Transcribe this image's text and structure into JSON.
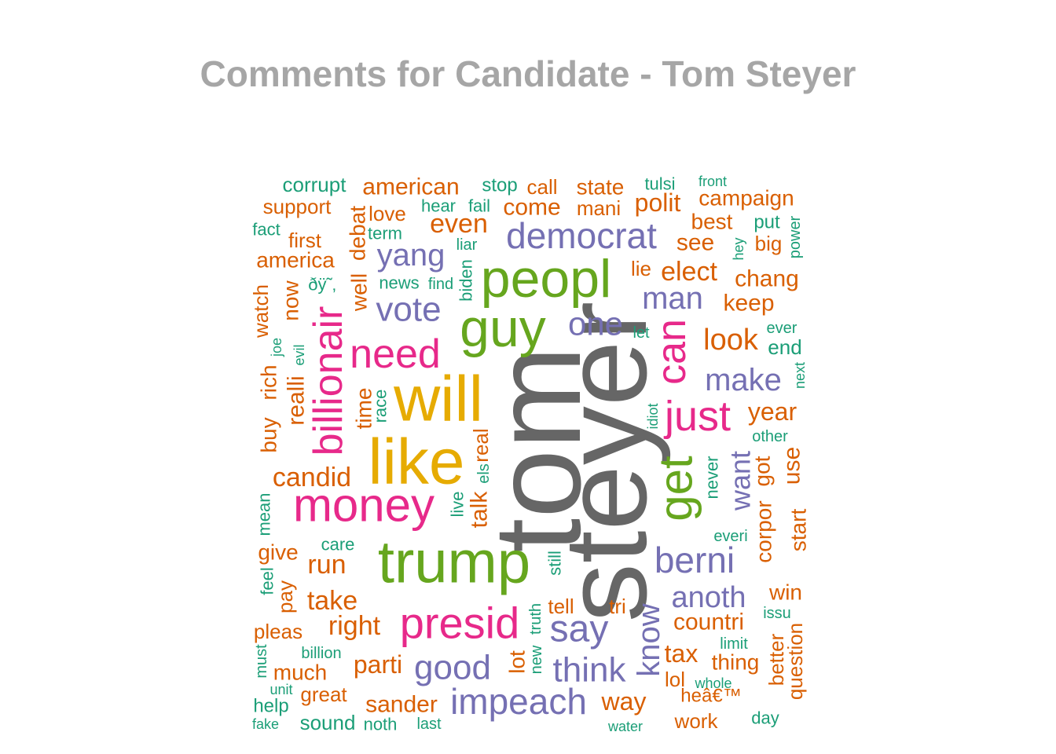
{
  "chart_data": {
    "type": "wordcloud",
    "title": "Comments for Candidate - Tom Steyer",
    "palette": [
      "#1b9e77",
      "#d95f02",
      "#7570b3",
      "#e7298a",
      "#66a61e",
      "#e6ab02",
      "#666666"
    ],
    "words": [
      {
        "text": "tom",
        "color": "#666666",
        "rotate": true
      },
      {
        "text": "steyer",
        "color": "#666666",
        "rotate": true
      },
      {
        "text": "trump",
        "color": "#66a61e",
        "rotate": false
      },
      {
        "text": "peopl",
        "color": "#66a61e",
        "rotate": false
      },
      {
        "text": "guy",
        "color": "#66a61e",
        "rotate": false
      },
      {
        "text": "will",
        "color": "#e6ab02",
        "rotate": false
      },
      {
        "text": "like",
        "color": "#e6ab02",
        "rotate": false
      },
      {
        "text": "get",
        "color": "#66a61e",
        "rotate": true
      },
      {
        "text": "money",
        "color": "#e7298a",
        "rotate": false
      },
      {
        "text": "presid",
        "color": "#e7298a",
        "rotate": false
      },
      {
        "text": "need",
        "color": "#e7298a",
        "rotate": false
      },
      {
        "text": "billionair",
        "color": "#e7298a",
        "rotate": true
      },
      {
        "text": "just",
        "color": "#e7298a",
        "rotate": false
      },
      {
        "text": "can",
        "color": "#e7298a",
        "rotate": true
      },
      {
        "text": "democrat",
        "color": "#7570b3",
        "rotate": false
      },
      {
        "text": "impeach",
        "color": "#7570b3",
        "rotate": false
      },
      {
        "text": "say",
        "color": "#7570b3",
        "rotate": false
      },
      {
        "text": "good",
        "color": "#7570b3",
        "rotate": false
      },
      {
        "text": "think",
        "color": "#7570b3",
        "rotate": false
      },
      {
        "text": "berni",
        "color": "#7570b3",
        "rotate": false
      },
      {
        "text": "vote",
        "color": "#7570b3",
        "rotate": false
      },
      {
        "text": "yang",
        "color": "#7570b3",
        "rotate": false
      },
      {
        "text": "one",
        "color": "#7570b3",
        "rotate": false
      },
      {
        "text": "man",
        "color": "#7570b3",
        "rotate": false
      },
      {
        "text": "make",
        "color": "#7570b3",
        "rotate": false
      },
      {
        "text": "know",
        "color": "#7570b3",
        "rotate": true
      },
      {
        "text": "want",
        "color": "#7570b3",
        "rotate": true
      },
      {
        "text": "anoth",
        "color": "#7570b3",
        "rotate": false
      },
      {
        "text": "corrupt",
        "color": "#1b9e77",
        "rotate": false
      },
      {
        "text": "american",
        "color": "#d95f02",
        "rotate": false
      },
      {
        "text": "stop",
        "color": "#1b9e77",
        "rotate": false
      },
      {
        "text": "call",
        "color": "#d95f02",
        "rotate": false
      },
      {
        "text": "state",
        "color": "#d95f02",
        "rotate": false
      },
      {
        "text": "tulsi",
        "color": "#1b9e77",
        "rotate": false
      },
      {
        "text": "front",
        "color": "#1b9e77",
        "rotate": false
      },
      {
        "text": "campaign",
        "color": "#d95f02",
        "rotate": false
      },
      {
        "text": "support",
        "color": "#d95f02",
        "rotate": false
      },
      {
        "text": "love",
        "color": "#d95f02",
        "rotate": false
      },
      {
        "text": "hear",
        "color": "#1b9e77",
        "rotate": false
      },
      {
        "text": "fail",
        "color": "#1b9e77",
        "rotate": false
      },
      {
        "text": "come",
        "color": "#d95f02",
        "rotate": false
      },
      {
        "text": "mani",
        "color": "#d95f02",
        "rotate": false
      },
      {
        "text": "polit",
        "color": "#d95f02",
        "rotate": false
      },
      {
        "text": "best",
        "color": "#d95f02",
        "rotate": false
      },
      {
        "text": "put",
        "color": "#1b9e77",
        "rotate": false
      },
      {
        "text": "power",
        "color": "#1b9e77",
        "rotate": true
      },
      {
        "text": "fact",
        "color": "#1b9e77",
        "rotate": false
      },
      {
        "text": "term",
        "color": "#1b9e77",
        "rotate": false
      },
      {
        "text": "even",
        "color": "#d95f02",
        "rotate": false
      },
      {
        "text": "first",
        "color": "#d95f02",
        "rotate": false
      },
      {
        "text": "debat",
        "color": "#d95f02",
        "rotate": true
      },
      {
        "text": "liar",
        "color": "#1b9e77",
        "rotate": false
      },
      {
        "text": "see",
        "color": "#d95f02",
        "rotate": false
      },
      {
        "text": "hey",
        "color": "#1b9e77",
        "rotate": true
      },
      {
        "text": "big",
        "color": "#d95f02",
        "rotate": false
      },
      {
        "text": "america",
        "color": "#d95f02",
        "rotate": false
      },
      {
        "text": "lie",
        "color": "#d95f02",
        "rotate": false
      },
      {
        "text": "elect",
        "color": "#d95f02",
        "rotate": false
      },
      {
        "text": "chang",
        "color": "#d95f02",
        "rotate": false
      },
      {
        "text": "news",
        "color": "#1b9e77",
        "rotate": false
      },
      {
        "text": "find",
        "color": "#1b9e77",
        "rotate": false
      },
      {
        "text": "biden",
        "color": "#1b9e77",
        "rotate": true
      },
      {
        "text": "ðÿ˜‚",
        "color": "#1b9e77",
        "rotate": false
      },
      {
        "text": "well",
        "color": "#d95f02",
        "rotate": true
      },
      {
        "text": "now",
        "color": "#d95f02",
        "rotate": true
      },
      {
        "text": "watch",
        "color": "#d95f02",
        "rotate": true
      },
      {
        "text": "keep",
        "color": "#d95f02",
        "rotate": false
      },
      {
        "text": "look",
        "color": "#d95f02",
        "rotate": false
      },
      {
        "text": "ever",
        "color": "#1b9e77",
        "rotate": false
      },
      {
        "text": "end",
        "color": "#1b9e77",
        "rotate": false
      },
      {
        "text": "let",
        "color": "#1b9e77",
        "rotate": false
      },
      {
        "text": "joe",
        "color": "#1b9e77",
        "rotate": true
      },
      {
        "text": "evil",
        "color": "#1b9e77",
        "rotate": true
      },
      {
        "text": "next",
        "color": "#1b9e77",
        "rotate": true
      },
      {
        "text": "rich",
        "color": "#d95f02",
        "rotate": true
      },
      {
        "text": "realli",
        "color": "#d95f02",
        "rotate": true
      },
      {
        "text": "time",
        "color": "#d95f02",
        "rotate": true
      },
      {
        "text": "race",
        "color": "#1b9e77",
        "rotate": true
      },
      {
        "text": "year",
        "color": "#d95f02",
        "rotate": false
      },
      {
        "text": "idiot",
        "color": "#1b9e77",
        "rotate": true
      },
      {
        "text": "other",
        "color": "#1b9e77",
        "rotate": false
      },
      {
        "text": "buy",
        "color": "#d95f02",
        "rotate": true
      },
      {
        "text": "real",
        "color": "#d95f02",
        "rotate": true
      },
      {
        "text": "els",
        "color": "#1b9e77",
        "rotate": true
      },
      {
        "text": "corpor",
        "color": "#d95f02",
        "rotate": true
      },
      {
        "text": "got",
        "color": "#d95f02",
        "rotate": true
      },
      {
        "text": "use",
        "color": "#d95f02",
        "rotate": true
      },
      {
        "text": "candid",
        "color": "#d95f02",
        "rotate": false
      },
      {
        "text": "never",
        "color": "#1b9e77",
        "rotate": true
      },
      {
        "text": "mean",
        "color": "#1b9e77",
        "rotate": true
      },
      {
        "text": "live",
        "color": "#1b9e77",
        "rotate": true
      },
      {
        "text": "talk",
        "color": "#d95f02",
        "rotate": true
      },
      {
        "text": "start",
        "color": "#d95f02",
        "rotate": true
      },
      {
        "text": "care",
        "color": "#1b9e77",
        "rotate": false
      },
      {
        "text": "everi",
        "color": "#1b9e77",
        "rotate": false
      },
      {
        "text": "give",
        "color": "#d95f02",
        "rotate": false
      },
      {
        "text": "run",
        "color": "#d95f02",
        "rotate": false
      },
      {
        "text": "still",
        "color": "#1b9e77",
        "rotate": true
      },
      {
        "text": "feel",
        "color": "#1b9e77",
        "rotate": true
      },
      {
        "text": "pay",
        "color": "#d95f02",
        "rotate": true
      },
      {
        "text": "take",
        "color": "#d95f02",
        "rotate": false
      },
      {
        "text": "win",
        "color": "#d95f02",
        "rotate": false
      },
      {
        "text": "tell",
        "color": "#d95f02",
        "rotate": false
      },
      {
        "text": "tri",
        "color": "#d95f02",
        "rotate": false
      },
      {
        "text": "truth",
        "color": "#1b9e77",
        "rotate": true
      },
      {
        "text": "issu",
        "color": "#1b9e77",
        "rotate": false
      },
      {
        "text": "right",
        "color": "#d95f02",
        "rotate": false
      },
      {
        "text": "countri",
        "color": "#d95f02",
        "rotate": false
      },
      {
        "text": "pleas",
        "color": "#d95f02",
        "rotate": false
      },
      {
        "text": "better",
        "color": "#d95f02",
        "rotate": true
      },
      {
        "text": "question",
        "color": "#d95f02",
        "rotate": true
      },
      {
        "text": "limit",
        "color": "#1b9e77",
        "rotate": false
      },
      {
        "text": "billion",
        "color": "#1b9e77",
        "rotate": false
      },
      {
        "text": "must",
        "color": "#1b9e77",
        "rotate": true
      },
      {
        "text": "tax",
        "color": "#d95f02",
        "rotate": false
      },
      {
        "text": "thing",
        "color": "#d95f02",
        "rotate": false
      },
      {
        "text": "parti",
        "color": "#d95f02",
        "rotate": false
      },
      {
        "text": "lot",
        "color": "#d95f02",
        "rotate": true
      },
      {
        "text": "new",
        "color": "#1b9e77",
        "rotate": true
      },
      {
        "text": "much",
        "color": "#d95f02",
        "rotate": false
      },
      {
        "text": "lol",
        "color": "#d95f02",
        "rotate": false
      },
      {
        "text": "whole",
        "color": "#1b9e77",
        "rotate": false
      },
      {
        "text": "unit",
        "color": "#1b9e77",
        "rotate": false
      },
      {
        "text": "great",
        "color": "#d95f02",
        "rotate": false
      },
      {
        "text": "way",
        "color": "#d95f02",
        "rotate": false
      },
      {
        "text": "heâ€™",
        "color": "#d95f02",
        "rotate": false
      },
      {
        "text": "help",
        "color": "#1b9e77",
        "rotate": false
      },
      {
        "text": "sander",
        "color": "#d95f02",
        "rotate": false
      },
      {
        "text": "work",
        "color": "#d95f02",
        "rotate": false
      },
      {
        "text": "day",
        "color": "#1b9e77",
        "rotate": false
      },
      {
        "text": "fake",
        "color": "#1b9e77",
        "rotate": false
      },
      {
        "text": "sound",
        "color": "#1b9e77",
        "rotate": false
      },
      {
        "text": "noth",
        "color": "#1b9e77",
        "rotate": false
      },
      {
        "text": "last",
        "color": "#1b9e77",
        "rotate": false
      },
      {
        "text": "water",
        "color": "#1b9e77",
        "rotate": false
      }
    ]
  }
}
